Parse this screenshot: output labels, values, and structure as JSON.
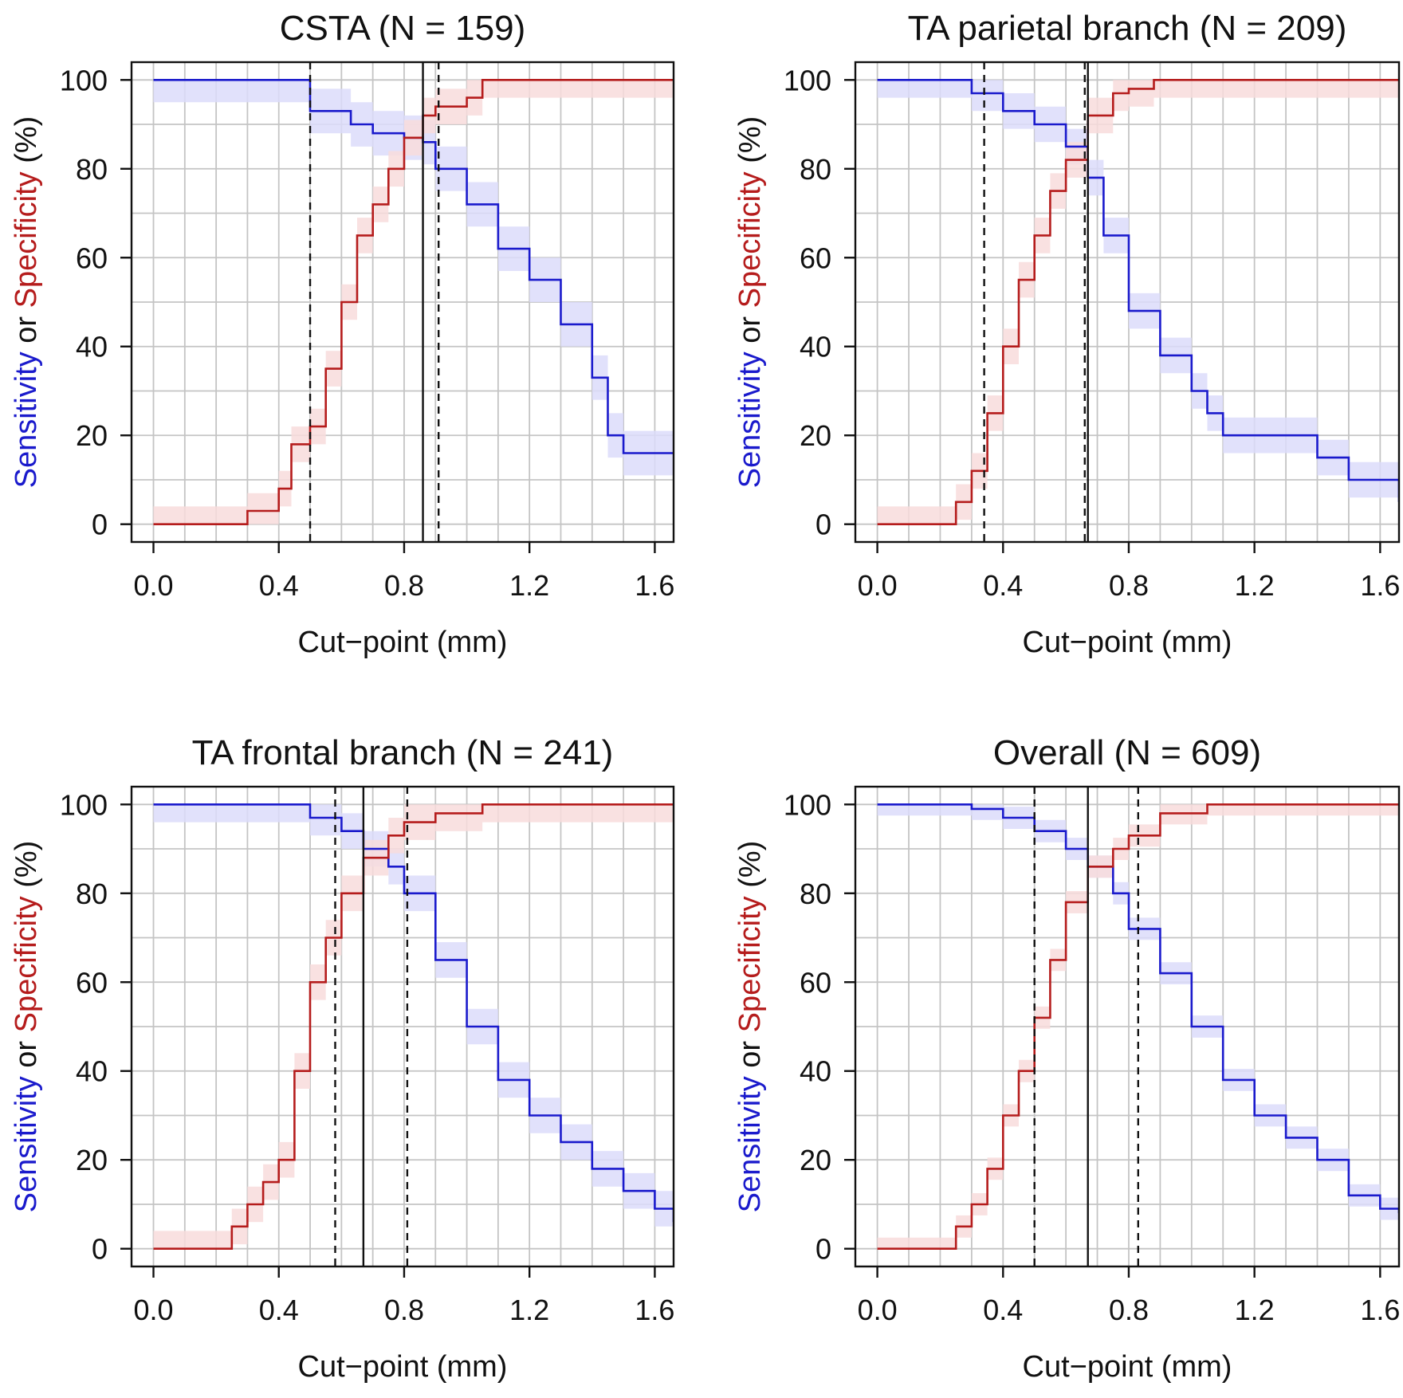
{
  "colors": {
    "sensitivity": "#1a1acc",
    "specificity": "#b51c1c",
    "sensitivity_band": "#dcdcfa",
    "specificity_band": "#f8dcdc",
    "grid": "#c4c4c4",
    "axis": "#111111"
  },
  "ylabel_parts": [
    "Sensitivity",
    " or ",
    "Specificity",
    " (%)"
  ],
  "chart_data": [
    {
      "type": "line",
      "title": "CSTA (N = 159)",
      "xlabel": "Cut−point (mm)",
      "ylabel": "Sensitivity or Specificity (%)",
      "xlim": [
        -0.07,
        1.66
      ],
      "ylim": [
        -4,
        104
      ],
      "xticks": [
        0.0,
        0.4,
        0.8,
        1.2,
        1.6
      ],
      "xtick_labels": [
        "0.0",
        "0.4",
        "0.8",
        "1.2",
        "1.6"
      ],
      "yticks": [
        0,
        20,
        40,
        60,
        80,
        100
      ],
      "ytick_labels": [
        "0",
        "20",
        "40",
        "60",
        "80",
        "100"
      ],
      "grid": true,
      "vlines": [
        {
          "x": 0.5,
          "style": "dashed"
        },
        {
          "x": 0.86,
          "style": "solid"
        },
        {
          "x": 0.91,
          "style": "dashed"
        }
      ],
      "series": [
        {
          "name": "Sensitivity",
          "band_width": 5,
          "x": [
            0.0,
            0.4,
            0.5,
            0.63,
            0.7,
            0.8,
            0.86,
            0.9,
            1.0,
            1.1,
            1.2,
            1.3,
            1.4,
            1.45,
            1.5,
            1.66
          ],
          "y": [
            100,
            100,
            93,
            90,
            88,
            87,
            86,
            80,
            72,
            62,
            55,
            45,
            33,
            20,
            16,
            16
          ]
        },
        {
          "name": "Specificity",
          "band_width": 4,
          "x": [
            0.0,
            0.2,
            0.3,
            0.4,
            0.44,
            0.5,
            0.55,
            0.6,
            0.65,
            0.7,
            0.75,
            0.8,
            0.86,
            0.9,
            1.0,
            1.05,
            1.66
          ],
          "y": [
            0,
            0,
            3,
            8,
            18,
            22,
            35,
            50,
            65,
            72,
            80,
            87,
            92,
            94,
            96,
            100,
            100
          ]
        }
      ]
    },
    {
      "type": "line",
      "title": "TA parietal branch (N = 209)",
      "xlabel": "Cut−point (mm)",
      "ylabel": "Sensitivity or Specificity (%)",
      "xlim": [
        -0.07,
        1.66
      ],
      "ylim": [
        -4,
        104
      ],
      "xticks": [
        0.0,
        0.4,
        0.8,
        1.2,
        1.6
      ],
      "xtick_labels": [
        "0.0",
        "0.4",
        "0.8",
        "1.2",
        "1.6"
      ],
      "yticks": [
        0,
        20,
        40,
        60,
        80,
        100
      ],
      "ytick_labels": [
        "0",
        "20",
        "40",
        "60",
        "80",
        "100"
      ],
      "grid": true,
      "vlines": [
        {
          "x": 0.34,
          "style": "dashed"
        },
        {
          "x": 0.66,
          "style": "dashed"
        },
        {
          "x": 0.67,
          "style": "solid"
        }
      ],
      "series": [
        {
          "name": "Sensitivity",
          "band_width": 4,
          "x": [
            0.0,
            0.2,
            0.3,
            0.4,
            0.5,
            0.6,
            0.67,
            0.72,
            0.8,
            0.9,
            1.0,
            1.05,
            1.1,
            1.3,
            1.4,
            1.5,
            1.66
          ],
          "y": [
            100,
            100,
            97,
            93,
            90,
            85,
            78,
            65,
            48,
            38,
            30,
            25,
            20,
            20,
            15,
            10,
            5
          ]
        },
        {
          "name": "Specificity",
          "band_width": 4,
          "x": [
            0.0,
            0.2,
            0.25,
            0.3,
            0.35,
            0.4,
            0.45,
            0.5,
            0.55,
            0.6,
            0.67,
            0.75,
            0.8,
            0.88,
            1.66
          ],
          "y": [
            0,
            0,
            5,
            12,
            25,
            40,
            55,
            65,
            75,
            82,
            92,
            97,
            98,
            100,
            100
          ]
        }
      ]
    },
    {
      "type": "line",
      "title": "TA frontal branch (N = 241)",
      "xlabel": "Cut−point (mm)",
      "ylabel": "Sensitivity or Specificity (%)",
      "xlim": [
        -0.07,
        1.66
      ],
      "ylim": [
        -4,
        104
      ],
      "xticks": [
        0.0,
        0.4,
        0.8,
        1.2,
        1.6
      ],
      "xtick_labels": [
        "0.0",
        "0.4",
        "0.8",
        "1.2",
        "1.6"
      ],
      "yticks": [
        0,
        20,
        40,
        60,
        80,
        100
      ],
      "ytick_labels": [
        "0",
        "20",
        "40",
        "60",
        "80",
        "100"
      ],
      "grid": true,
      "vlines": [
        {
          "x": 0.58,
          "style": "dashed"
        },
        {
          "x": 0.67,
          "style": "solid"
        },
        {
          "x": 0.81,
          "style": "dashed"
        }
      ],
      "series": [
        {
          "name": "Sensitivity",
          "band_width": 4,
          "x": [
            0.0,
            0.45,
            0.5,
            0.6,
            0.67,
            0.75,
            0.8,
            0.9,
            1.0,
            1.1,
            1.2,
            1.3,
            1.4,
            1.5,
            1.6,
            1.66
          ],
          "y": [
            100,
            100,
            97,
            94,
            90,
            86,
            80,
            65,
            50,
            38,
            30,
            24,
            18,
            13,
            9,
            6
          ]
        },
        {
          "name": "Specificity",
          "band_width": 4,
          "x": [
            0.0,
            0.2,
            0.25,
            0.3,
            0.35,
            0.4,
            0.45,
            0.5,
            0.55,
            0.6,
            0.67,
            0.75,
            0.8,
            0.9,
            1.05,
            1.66
          ],
          "y": [
            0,
            0,
            5,
            10,
            15,
            20,
            40,
            60,
            70,
            80,
            88,
            93,
            96,
            98,
            100,
            100
          ]
        }
      ]
    },
    {
      "type": "line",
      "title": "Overall (N = 609)",
      "xlabel": "Cut−point (mm)",
      "ylabel": "Sensitivity or Specificity (%)",
      "xlim": [
        -0.07,
        1.66
      ],
      "ylim": [
        -4,
        104
      ],
      "xticks": [
        0.0,
        0.4,
        0.8,
        1.2,
        1.6
      ],
      "xtick_labels": [
        "0.0",
        "0.4",
        "0.8",
        "1.2",
        "1.6"
      ],
      "yticks": [
        0,
        20,
        40,
        60,
        80,
        100
      ],
      "ytick_labels": [
        "0",
        "20",
        "40",
        "60",
        "80",
        "100"
      ],
      "grid": true,
      "vlines": [
        {
          "x": 0.5,
          "style": "dashed"
        },
        {
          "x": 0.67,
          "style": "solid"
        },
        {
          "x": 0.83,
          "style": "dashed"
        }
      ],
      "series": [
        {
          "name": "Sensitivity",
          "band_width": 2.5,
          "x": [
            0.0,
            0.2,
            0.3,
            0.4,
            0.5,
            0.6,
            0.67,
            0.75,
            0.8,
            0.9,
            1.0,
            1.1,
            1.2,
            1.3,
            1.4,
            1.5,
            1.6,
            1.66
          ],
          "y": [
            100,
            100,
            99,
            97,
            94,
            90,
            86,
            80,
            72,
            62,
            50,
            38,
            30,
            25,
            20,
            12,
            9,
            8
          ]
        },
        {
          "name": "Specificity",
          "band_width": 2.5,
          "x": [
            0.0,
            0.2,
            0.25,
            0.3,
            0.35,
            0.4,
            0.45,
            0.5,
            0.55,
            0.6,
            0.67,
            0.75,
            0.8,
            0.9,
            1.05,
            1.66
          ],
          "y": [
            0,
            0,
            5,
            10,
            18,
            30,
            40,
            52,
            65,
            78,
            86,
            90,
            93,
            98,
            100,
            100
          ]
        }
      ]
    }
  ]
}
